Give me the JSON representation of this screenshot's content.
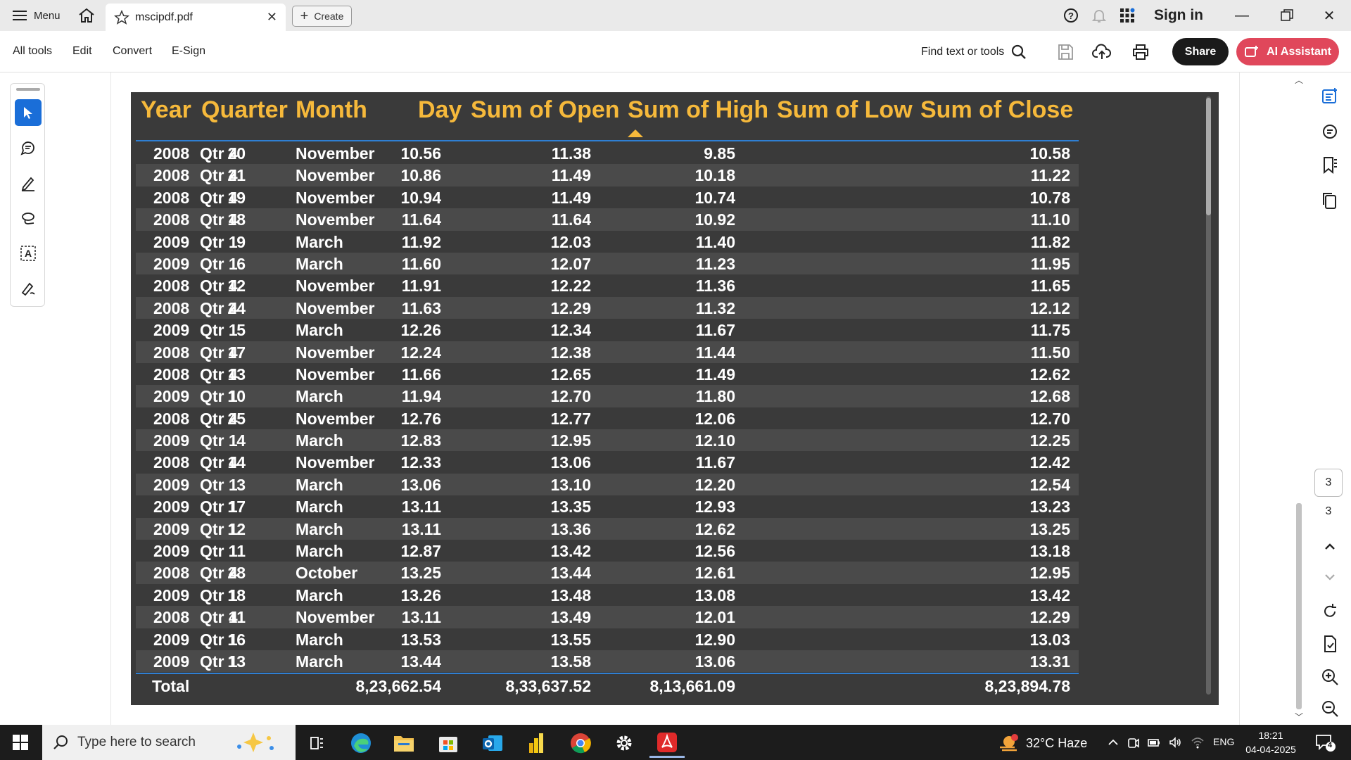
{
  "titlebar": {
    "menu_label": "Menu",
    "tab_title": "mscipdf.pdf",
    "create_label": "Create",
    "sign_in": "Sign in"
  },
  "toolbar": {
    "tabs": [
      "All tools",
      "Edit",
      "Convert",
      "E-Sign"
    ],
    "find_label": "Find text or tools",
    "share_label": "Share",
    "ai_label": "AI Assistant"
  },
  "table": {
    "headers": [
      "Year",
      "Quarter",
      "Month",
      "Day",
      "Sum of Open",
      "Sum of High",
      "Sum of Low",
      "Sum of Close"
    ],
    "rows": [
      [
        "2008",
        "Qtr 4",
        "November",
        "20",
        "10.56",
        "11.38",
        "9.85",
        "10.58"
      ],
      [
        "2008",
        "Qtr 4",
        "November",
        "21",
        "10.86",
        "11.49",
        "10.18",
        "11.22"
      ],
      [
        "2008",
        "Qtr 4",
        "November",
        "19",
        "10.94",
        "11.49",
        "10.74",
        "10.78"
      ],
      [
        "2008",
        "Qtr 4",
        "November",
        "18",
        "11.64",
        "11.64",
        "10.92",
        "11.10"
      ],
      [
        "2009",
        "Qtr 1",
        "March",
        "9",
        "11.92",
        "12.03",
        "11.40",
        "11.82"
      ],
      [
        "2009",
        "Qtr 1",
        "March",
        "6",
        "11.60",
        "12.07",
        "11.23",
        "11.95"
      ],
      [
        "2008",
        "Qtr 4",
        "November",
        "12",
        "11.91",
        "12.22",
        "11.36",
        "11.65"
      ],
      [
        "2008",
        "Qtr 4",
        "November",
        "24",
        "11.63",
        "12.29",
        "11.32",
        "12.12"
      ],
      [
        "2009",
        "Qtr 1",
        "March",
        "5",
        "12.26",
        "12.34",
        "11.67",
        "11.75"
      ],
      [
        "2008",
        "Qtr 4",
        "November",
        "17",
        "12.24",
        "12.38",
        "11.44",
        "11.50"
      ],
      [
        "2008",
        "Qtr 4",
        "November",
        "13",
        "11.66",
        "12.65",
        "11.49",
        "12.62"
      ],
      [
        "2009",
        "Qtr 1",
        "March",
        "10",
        "11.94",
        "12.70",
        "11.80",
        "12.68"
      ],
      [
        "2008",
        "Qtr 4",
        "November",
        "25",
        "12.76",
        "12.77",
        "12.06",
        "12.70"
      ],
      [
        "2009",
        "Qtr 1",
        "March",
        "4",
        "12.83",
        "12.95",
        "12.10",
        "12.25"
      ],
      [
        "2008",
        "Qtr 4",
        "November",
        "14",
        "12.33",
        "13.06",
        "11.67",
        "12.42"
      ],
      [
        "2009",
        "Qtr 1",
        "March",
        "3",
        "13.06",
        "13.10",
        "12.20",
        "12.54"
      ],
      [
        "2009",
        "Qtr 1",
        "March",
        "17",
        "13.11",
        "13.35",
        "12.93",
        "13.23"
      ],
      [
        "2009",
        "Qtr 1",
        "March",
        "12",
        "13.11",
        "13.36",
        "12.62",
        "13.25"
      ],
      [
        "2009",
        "Qtr 1",
        "March",
        "11",
        "12.87",
        "13.42",
        "12.56",
        "13.18"
      ],
      [
        "2008",
        "Qtr 4",
        "October",
        "28",
        "13.25",
        "13.44",
        "12.61",
        "12.95"
      ],
      [
        "2009",
        "Qtr 1",
        "March",
        "18",
        "13.26",
        "13.48",
        "13.08",
        "13.42"
      ],
      [
        "2008",
        "Qtr 4",
        "November",
        "11",
        "13.11",
        "13.49",
        "12.01",
        "12.29"
      ],
      [
        "2009",
        "Qtr 1",
        "March",
        "16",
        "13.53",
        "13.55",
        "12.90",
        "13.03"
      ],
      [
        "2009",
        "Qtr 1",
        "March",
        "13",
        "13.44",
        "13.58",
        "13.06",
        "13.31"
      ]
    ],
    "total": {
      "label": "Total",
      "open": "8,23,662.54",
      "high": "8,33,637.52",
      "low": "8,13,661.09",
      "close": "8,23,894.78"
    },
    "sorted_column": "Sum of High",
    "header_color": "#f6b93b"
  },
  "pager": {
    "current": "3",
    "total": "3"
  },
  "taskbar": {
    "search_placeholder": "Type here to search",
    "weather": "32°C  Haze",
    "lang": "ENG",
    "time": "18:21",
    "date": "04-04-2025",
    "notif_count": "4"
  }
}
